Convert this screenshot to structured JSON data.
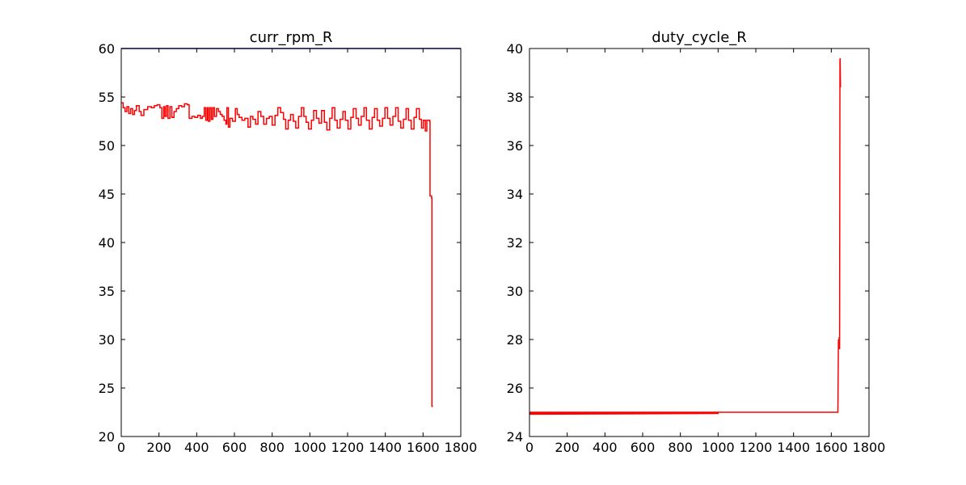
{
  "chart_data": [
    {
      "type": "line",
      "title": "curr_rpm_R",
      "xlabel": "",
      "ylabel": "",
      "xlim": [
        0,
        1800
      ],
      "ylim": [
        20,
        60
      ],
      "xticks": [
        0,
        200,
        400,
        600,
        800,
        1000,
        1200,
        1400,
        1600,
        1800
      ],
      "yticks": [
        20,
        25,
        30,
        35,
        40,
        45,
        50,
        55,
        60
      ],
      "grid": false,
      "series": [
        {
          "color": "#0000cc",
          "points": [
            [
              0,
              60
            ],
            [
              1800,
              60
            ]
          ]
        },
        {
          "color": "#ff0000",
          "step": true,
          "points": [
            [
              0,
              54.4
            ],
            [
              10,
              53.9
            ],
            [
              20,
              53.5
            ],
            [
              30,
              54.0
            ],
            [
              40,
              53.3
            ],
            [
              50,
              53.8
            ],
            [
              60,
              53.2
            ],
            [
              70,
              53.6
            ],
            [
              80,
              54.1
            ],
            [
              95,
              53.5
            ],
            [
              105,
              53.1
            ],
            [
              120,
              53.7
            ],
            [
              140,
              54.0
            ],
            [
              160,
              53.9
            ],
            [
              175,
              54.1
            ],
            [
              190,
              54.2
            ],
            [
              205,
              53.9
            ],
            [
              215,
              52.8
            ],
            [
              225,
              54.0
            ],
            [
              232,
              53.0
            ],
            [
              240,
              54.1
            ],
            [
              248,
              52.8
            ],
            [
              258,
              54.0
            ],
            [
              268,
              52.9
            ],
            [
              280,
              53.5
            ],
            [
              292,
              53.8
            ],
            [
              305,
              54.1
            ],
            [
              320,
              54.0
            ],
            [
              335,
              54.3
            ],
            [
              350,
              54.2
            ],
            [
              360,
              52.8
            ],
            [
              375,
              53.0
            ],
            [
              390,
              52.9
            ],
            [
              405,
              53.1
            ],
            [
              420,
              52.8
            ],
            [
              430,
              53.0
            ],
            [
              440,
              53.9
            ],
            [
              448,
              52.6
            ],
            [
              456,
              53.9
            ],
            [
              462,
              52.5
            ],
            [
              470,
              53.9
            ],
            [
              478,
              52.7
            ],
            [
              486,
              53.9
            ],
            [
              494,
              53.0
            ],
            [
              505,
              53.8
            ],
            [
              515,
              53.5
            ],
            [
              525,
              53.2
            ],
            [
              535,
              53.0
            ],
            [
              545,
              52.6
            ],
            [
              555,
              52.2
            ],
            [
              560,
              53.9
            ],
            [
              568,
              51.9
            ],
            [
              576,
              52.8
            ],
            [
              590,
              52.5
            ],
            [
              605,
              53.8
            ],
            [
              615,
              53.2
            ],
            [
              625,
              52.9
            ],
            [
              640,
              52.6
            ],
            [
              655,
              52.8
            ],
            [
              672,
              51.9
            ],
            [
              685,
              53.0
            ],
            [
              698,
              52.7
            ],
            [
              712,
              52.2
            ],
            [
              725,
              53.5
            ],
            [
              740,
              53.0
            ],
            [
              755,
              52.2
            ],
            [
              770,
              52.8
            ],
            [
              785,
              53.0
            ],
            [
              800,
              52.1
            ],
            [
              815,
              53.1
            ],
            [
              830,
              53.9
            ],
            [
              845,
              53.4
            ],
            [
              860,
              52.7
            ],
            [
              872,
              51.7
            ],
            [
              885,
              52.6
            ],
            [
              898,
              53.2
            ],
            [
              912,
              52.5
            ],
            [
              925,
              51.8
            ],
            [
              940,
              53.0
            ],
            [
              955,
              53.9
            ],
            [
              968,
              53.0
            ],
            [
              980,
              52.4
            ],
            [
              993,
              51.7
            ],
            [
              1008,
              52.6
            ],
            [
              1020,
              53.6
            ],
            [
              1035,
              52.8
            ],
            [
              1048,
              52.3
            ],
            [
              1062,
              53.6
            ],
            [
              1077,
              52.4
            ],
            [
              1090,
              51.6
            ],
            [
              1105,
              52.8
            ],
            [
              1118,
              53.9
            ],
            [
              1132,
              52.6
            ],
            [
              1145,
              51.8
            ],
            [
              1160,
              52.7
            ],
            [
              1175,
              53.5
            ],
            [
              1188,
              52.6
            ],
            [
              1202,
              51.7
            ],
            [
              1217,
              52.9
            ],
            [
              1230,
              53.8
            ],
            [
              1245,
              52.8
            ],
            [
              1258,
              52.1
            ],
            [
              1272,
              53.0
            ],
            [
              1287,
              53.9
            ],
            [
              1300,
              52.6
            ],
            [
              1315,
              51.7
            ],
            [
              1330,
              52.9
            ],
            [
              1343,
              53.8
            ],
            [
              1357,
              52.6
            ],
            [
              1370,
              52.0
            ],
            [
              1385,
              52.8
            ],
            [
              1398,
              53.9
            ],
            [
              1412,
              52.8
            ],
            [
              1425,
              52.1
            ],
            [
              1440,
              53.0
            ],
            [
              1455,
              53.9
            ],
            [
              1468,
              52.5
            ],
            [
              1482,
              51.8
            ],
            [
              1496,
              52.7
            ],
            [
              1510,
              53.8
            ],
            [
              1523,
              52.6
            ],
            [
              1537,
              51.7
            ],
            [
              1552,
              52.9
            ],
            [
              1565,
              53.8
            ],
            [
              1580,
              52.7
            ],
            [
              1592,
              51.8
            ],
            [
              1602,
              52.6
            ],
            [
              1612,
              51.5
            ],
            [
              1620,
              52.6
            ],
            [
              1635,
              52.5
            ],
            [
              1637,
              44.8
            ],
            [
              1645,
              44.6
            ],
            [
              1647,
              23.1
            ],
            [
              1652,
              23.1
            ]
          ]
        }
      ]
    },
    {
      "type": "line",
      "title": "duty_cycle_R",
      "xlabel": "",
      "ylabel": "",
      "xlim": [
        0,
        1800
      ],
      "ylim": [
        24,
        40
      ],
      "xticks": [
        0,
        200,
        400,
        600,
        800,
        1000,
        1200,
        1400,
        1600,
        1800
      ],
      "yticks": [
        24,
        26,
        28,
        30,
        32,
        34,
        36,
        38,
        40
      ],
      "grid": false,
      "series": [
        {
          "color": "#ff0000",
          "step": false,
          "points": [
            [
              0,
              25.0
            ],
            [
              0,
              24.92
            ],
            [
              1000,
              24.95
            ],
            [
              1000,
              25.0
            ],
            [
              1635,
              25.0
            ],
            [
              1638,
              28.0
            ],
            [
              1640,
              27.6
            ],
            [
              1642,
              28.1
            ],
            [
              1644,
              27.6
            ],
            [
              1646,
              39.5
            ],
            [
              1647,
              39.6
            ],
            [
              1649,
              38.4
            ]
          ],
          "extra_segments": [
            [
              [
                0,
                25.0
              ],
              [
                1000,
                25.0
              ]
            ],
            [
              [
                0,
                24.96
              ],
              [
                1000,
                24.98
              ]
            ]
          ]
        }
      ]
    }
  ]
}
